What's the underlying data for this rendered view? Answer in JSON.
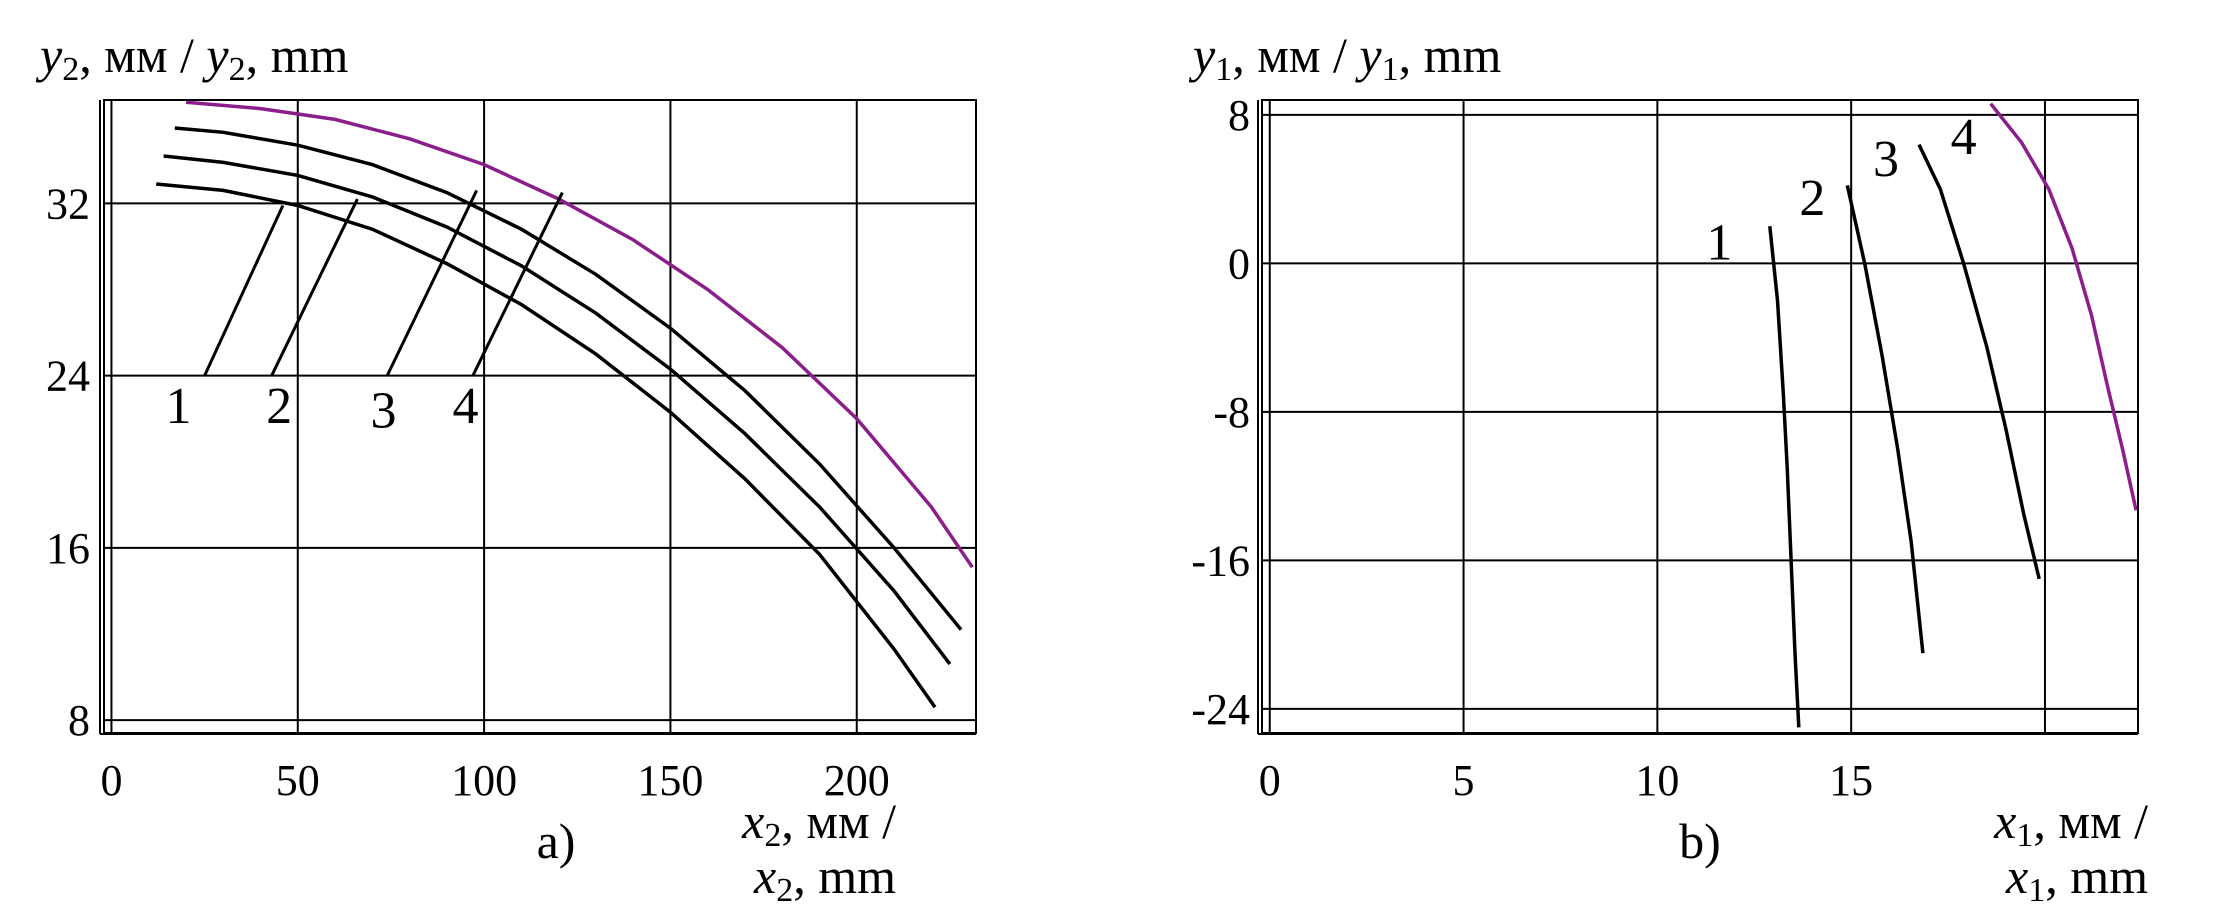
{
  "chart_data": [
    {
      "type": "line",
      "panel_label": "a)",
      "ylabel_parts": {
        "var": "y",
        "sub": "2",
        "rest": ", мм / ",
        "var2": "y",
        "sub2": "2",
        "rest2": ", mm"
      },
      "xlabel_line1": {
        "var": "x",
        "sub": "2",
        "rest": ", мм /"
      },
      "xlabel_line2": {
        "var": "x",
        "sub": "2",
        "rest": ", mm"
      },
      "xlim": [
        -2,
        232
      ],
      "ylim": [
        7.4,
        36.8
      ],
      "x_ticks": [
        0,
        50,
        100,
        150,
        200
      ],
      "x_tick_labels": [
        "0",
        "50",
        "100",
        "150",
        "200"
      ],
      "y_ticks": [
        8,
        16,
        24,
        32
      ],
      "y_tick_labels": [
        "8",
        "16",
        "24",
        "32"
      ],
      "grid": true,
      "series": [
        {
          "name": "1",
          "color": "#000000",
          "x": [
            12,
            30,
            50,
            70,
            90,
            110,
            130,
            150,
            170,
            190,
            210,
            221
          ],
          "y": [
            32.9,
            32.6,
            31.9,
            30.8,
            29.2,
            27.3,
            25.0,
            22.3,
            19.2,
            15.7,
            11.3,
            8.6
          ]
        },
        {
          "name": "2",
          "color": "#000000",
          "x": [
            14,
            30,
            50,
            70,
            90,
            110,
            130,
            150,
            170,
            190,
            210,
            225
          ],
          "y": [
            34.2,
            33.9,
            33.3,
            32.3,
            30.9,
            29.1,
            26.9,
            24.3,
            21.3,
            17.9,
            14.0,
            10.6
          ]
        },
        {
          "name": "3",
          "color": "#000000",
          "x": [
            17,
            30,
            50,
            70,
            90,
            110,
            130,
            150,
            170,
            190,
            210,
            228
          ],
          "y": [
            35.5,
            35.3,
            34.7,
            33.8,
            32.5,
            30.8,
            28.7,
            26.2,
            23.3,
            19.9,
            16.0,
            12.2
          ]
        },
        {
          "name": "4",
          "color": "#8b1e8b",
          "x": [
            20,
            40,
            60,
            80,
            100,
            120,
            140,
            160,
            180,
            200,
            220,
            231
          ],
          "y": [
            36.7,
            36.4,
            35.9,
            35.0,
            33.8,
            32.2,
            30.3,
            28.0,
            25.3,
            22.0,
            17.9,
            15.1
          ]
        }
      ],
      "curve_labels": [
        {
          "text": "1",
          "x": 18,
          "y": 21.8
        },
        {
          "text": "2",
          "x": 45,
          "y": 21.8
        },
        {
          "text": "3",
          "x": 73,
          "y": 21.6
        },
        {
          "text": "4",
          "x": 95,
          "y": 21.8
        }
      ],
      "leaders": [
        {
          "from": [
            25,
            24.0
          ],
          "to": [
            46,
            31.9
          ]
        },
        {
          "from": [
            43,
            24.0
          ],
          "to": [
            66,
            32.2
          ]
        },
        {
          "from": [
            74,
            24.0
          ],
          "to": [
            98,
            32.6
          ]
        },
        {
          "from": [
            97,
            24.0
          ],
          "to": [
            121,
            32.5
          ]
        }
      ]
    },
    {
      "type": "line",
      "panel_label": "b)",
      "ylabel_parts": {
        "var": "y",
        "sub": "1",
        "rest": ", мм / ",
        "var2": "y",
        "sub2": "1",
        "rest2": ", mm"
      },
      "xlabel_line1": {
        "var": "x",
        "sub": "1",
        "rest": ", мм /"
      },
      "xlabel_line2": {
        "var": "x",
        "sub": "1",
        "rest": ", mm"
      },
      "xlim": [
        -0.2,
        22.4
      ],
      "ylim": [
        -25.3,
        8.8
      ],
      "x_ticks": [
        0,
        5,
        10,
        15,
        20
      ],
      "x_tick_labels": [
        "0",
        "5",
        "10",
        "15",
        ""
      ],
      "y_ticks": [
        -24,
        -16,
        -8,
        0,
        8
      ],
      "y_tick_labels": [
        "-24",
        "-16",
        "-8",
        "0",
        "8"
      ],
      "grid": true,
      "series": [
        {
          "name": "1",
          "color": "#000000",
          "x": [
            12.9,
            13.1,
            13.25,
            13.35,
            13.45,
            13.55,
            13.65
          ],
          "y": [
            2.0,
            -2.0,
            -7.0,
            -11.0,
            -16.0,
            -21.0,
            -25.0
          ]
        },
        {
          "name": "2",
          "color": "#000000",
          "x": [
            14.9,
            15.35,
            15.8,
            16.2,
            16.55,
            16.85
          ],
          "y": [
            4.2,
            0.0,
            -5.0,
            -10.0,
            -15.0,
            -21.0
          ]
        },
        {
          "name": "3",
          "color": "#000000",
          "x": [
            16.75,
            17.3,
            17.9,
            18.5,
            19.0,
            19.45,
            19.85
          ],
          "y": [
            6.4,
            4.0,
            0.0,
            -4.5,
            -9.0,
            -13.5,
            -17.0
          ]
        },
        {
          "name": "4",
          "color": "#8b1e8b",
          "x": [
            18.6,
            19.4,
            20.1,
            20.7,
            21.2,
            21.6,
            22.0,
            22.35
          ],
          "y": [
            8.6,
            6.5,
            4.0,
            0.8,
            -2.8,
            -6.5,
            -10.0,
            -13.3
          ]
        }
      ],
      "curve_labels": [
        {
          "text": "1",
          "x": 11.6,
          "y": 0.2
        },
        {
          "text": "2",
          "x": 14.0,
          "y": 2.6
        },
        {
          "text": "3",
          "x": 15.9,
          "y": 4.7
        },
        {
          "text": "4",
          "x": 17.9,
          "y": 5.9
        }
      ],
      "leaders": []
    }
  ]
}
